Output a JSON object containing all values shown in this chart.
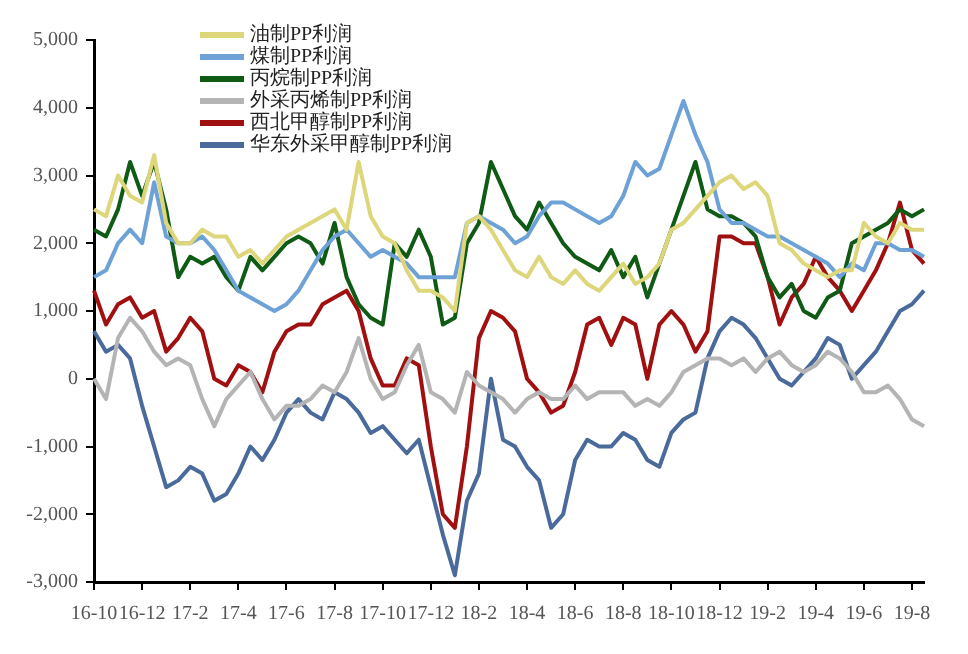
{
  "chart_data": {
    "type": "line",
    "legend": "top left",
    "grid": false,
    "marker": "none",
    "line_style": "solid",
    "categories": [
      "16-10",
      null,
      null,
      null,
      "16-12",
      null,
      null,
      null,
      "17-2",
      null,
      null,
      null,
      "17-4",
      null,
      null,
      null,
      "17-6",
      null,
      null,
      null,
      "17-8",
      null,
      null,
      null,
      "17-10",
      null,
      null,
      null,
      "17-12",
      null,
      null,
      null,
      "18-2",
      null,
      null,
      null,
      "18-4",
      null,
      null,
      null,
      "18-6",
      null,
      null,
      null,
      "18-8",
      null,
      null,
      null,
      "18-10",
      null,
      null,
      null,
      "18-12",
      null,
      null,
      null,
      "19-2",
      null,
      null,
      null,
      "19-4",
      null,
      null,
      null,
      "19-6",
      null,
      null,
      null,
      "19-8",
      null
    ],
    "ylim": [
      -3000,
      5000
    ],
    "yticks": [
      {
        "value": -3000,
        "label": "-3,000"
      },
      {
        "value": -2000,
        "label": "-2,000"
      },
      {
        "value": -1000,
        "label": "-1,000"
      },
      0,
      {
        "value": 1000,
        "label": "1,000"
      },
      {
        "value": 2000,
        "label": "2,000"
      },
      {
        "value": 3000,
        "label": "3,000"
      },
      {
        "value": 4000,
        "label": "4,000"
      },
      {
        "value": 5000,
        "label": "5,000"
      }
    ],
    "series": [
      {
        "name": "油制PP利润",
        "color": "#ddd67a",
        "values": [
          2500,
          2400,
          3000,
          2700,
          2600,
          3300,
          2300,
          2000,
          2000,
          2200,
          2100,
          2100,
          1800,
          1900,
          1700,
          1900,
          2100,
          2200,
          2300,
          2400,
          2500,
          2200,
          3200,
          2400,
          2100,
          2000,
          1600,
          1300,
          1300,
          1200,
          1000,
          2300,
          2400,
          2200,
          1900,
          1600,
          1500,
          1800,
          1500,
          1400,
          1600,
          1400,
          1300,
          1500,
          1700,
          1400,
          1500,
          1700,
          2200,
          2300,
          2500,
          2700,
          2900,
          3000,
          2800,
          2900,
          2700,
          2000,
          1900,
          1700,
          1600,
          1500,
          1600,
          1600,
          2300,
          2100,
          2000,
          2300,
          2200,
          2200
        ]
      },
      {
        "name": "煤制PP利润",
        "color": "#6ea2d6",
        "values": [
          1500,
          1600,
          2000,
          2200,
          2000,
          2900,
          2100,
          2000,
          2000,
          2100,
          1900,
          1600,
          1300,
          1200,
          1100,
          1000,
          1100,
          1300,
          1600,
          1900,
          2100,
          2200,
          2000,
          1800,
          1900,
          1800,
          1700,
          1500,
          1500,
          1500,
          1500,
          2300,
          2400,
          2300,
          2200,
          2000,
          2100,
          2400,
          2600,
          2600,
          2500,
          2400,
          2300,
          2400,
          2700,
          3200,
          3000,
          3100,
          3600,
          4100,
          3600,
          3200,
          2500,
          2300,
          2300,
          2200,
          2100,
          2100,
          2000,
          1900,
          1800,
          1700,
          1500,
          1700,
          1600,
          2000,
          2000,
          1900,
          1900,
          1800
        ]
      },
      {
        "name": "丙烷制PP利润",
        "color": "#0f5a14",
        "values": [
          2200,
          2100,
          2500,
          3200,
          2700,
          3200,
          2500,
          1500,
          1800,
          1700,
          1800,
          1500,
          1300,
          1800,
          1600,
          1800,
          2000,
          2100,
          2000,
          1700,
          2300,
          1500,
          1100,
          900,
          800,
          2000,
          1800,
          2200,
          1800,
          800,
          900,
          2000,
          2300,
          3200,
          2800,
          2400,
          2200,
          2600,
          2300,
          2000,
          1800,
          1700,
          1600,
          1900,
          1500,
          1800,
          1200,
          1700,
          2200,
          2700,
          3200,
          2500,
          2400,
          2400,
          2300,
          2100,
          1500,
          1200,
          1400,
          1000,
          900,
          1200,
          1300,
          2000,
          2100,
          2200,
          2300,
          2500,
          2400,
          2500
        ]
      },
      {
        "name": "外采丙烯制PP利润",
        "color": "#b4b4b4",
        "values": [
          0,
          -300,
          600,
          900,
          700,
          400,
          200,
          300,
          200,
          -300,
          -700,
          -300,
          -100,
          100,
          -300,
          -600,
          -400,
          -400,
          -300,
          -100,
          -200,
          100,
          600,
          0,
          -300,
          -200,
          200,
          500,
          -200,
          -300,
          -500,
          100,
          -100,
          -200,
          -300,
          -500,
          -300,
          -200,
          -300,
          -300,
          -100,
          -300,
          -200,
          -200,
          -200,
          -400,
          -300,
          -400,
          -200,
          100,
          200,
          300,
          300,
          200,
          300,
          100,
          300,
          400,
          200,
          100,
          200,
          400,
          300,
          100,
          -200,
          -200,
          -100,
          -300,
          -600,
          -700
        ]
      },
      {
        "name": "西北甲醇制PP利润",
        "color": "#a01010",
        "values": [
          1300,
          800,
          1100,
          1200,
          900,
          1000,
          400,
          600,
          900,
          700,
          0,
          -100,
          200,
          100,
          -200,
          400,
          700,
          800,
          800,
          1100,
          1200,
          1300,
          1000,
          300,
          -100,
          -100,
          300,
          200,
          -1000,
          -2000,
          -2200,
          -1000,
          600,
          1000,
          900,
          700,
          0,
          -200,
          -500,
          -400,
          100,
          800,
          900,
          500,
          900,
          800,
          0,
          800,
          1000,
          800,
          400,
          700,
          2100,
          2100,
          2000,
          2000,
          1500,
          800,
          1200,
          1400,
          1800,
          1500,
          1300,
          1000,
          1300,
          1600,
          2000,
          2600,
          1900,
          1700
        ]
      },
      {
        "name": "华东外采甲醇制PP利润",
        "color": "#4a6a9c",
        "values": [
          700,
          400,
          500,
          300,
          -400,
          -1000,
          -1600,
          -1500,
          -1300,
          -1400,
          -1800,
          -1700,
          -1400,
          -1000,
          -1200,
          -900,
          -500,
          -300,
          -500,
          -600,
          -200,
          -300,
          -500,
          -800,
          -700,
          -900,
          -1100,
          -900,
          -1600,
          -2300,
          -2900,
          -1800,
          -1400,
          0,
          -900,
          -1000,
          -1300,
          -1500,
          -2200,
          -2000,
          -1200,
          -900,
          -1000,
          -1000,
          -800,
          -900,
          -1200,
          -1300,
          -800,
          -600,
          -500,
          300,
          700,
          900,
          800,
          600,
          300,
          0,
          -100,
          100,
          300,
          600,
          500,
          0,
          200,
          400,
          700,
          1000,
          1100,
          1300
        ]
      }
    ]
  }
}
